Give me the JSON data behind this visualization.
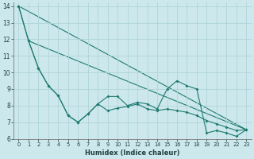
{
  "xlabel": "Humidex (Indice chaleur)",
  "background_color": "#cde8ec",
  "grid_color": "#aed4d8",
  "line_color": "#1e7a70",
  "xlim": [
    -0.5,
    23.5
  ],
  "ylim": [
    6,
    14.2
  ],
  "yticks": [
    6,
    7,
    8,
    9,
    10,
    11,
    12,
    13,
    14
  ],
  "xticks": [
    0,
    1,
    2,
    3,
    4,
    5,
    6,
    7,
    8,
    9,
    10,
    11,
    12,
    13,
    14,
    15,
    16,
    17,
    18,
    19,
    20,
    21,
    22,
    23
  ],
  "series": [
    {
      "x": [
        0,
        1,
        2,
        3,
        4,
        5,
        6,
        7,
        8,
        9,
        10,
        11,
        12,
        13,
        14,
        15,
        16,
        17,
        18,
        19,
        20,
        21,
        22,
        23
      ],
      "y": [
        14,
        11.9,
        10.25,
        9.2,
        8.6,
        7.4,
        7.0,
        7.5,
        8.1,
        8.55,
        8.55,
        8.0,
        8.2,
        8.1,
        7.8,
        9.0,
        9.5,
        9.2,
        9.0,
        6.35,
        6.5,
        6.35,
        6.15,
        6.55
      ],
      "marker": true
    },
    {
      "x": [
        0,
        1,
        2,
        3,
        4,
        5,
        6,
        7,
        8,
        9,
        10,
        11,
        12,
        13,
        14,
        15,
        16,
        17,
        18,
        19,
        20,
        21,
        22,
        23
      ],
      "y": [
        14,
        11.9,
        10.25,
        9.2,
        8.6,
        7.4,
        7.0,
        7.5,
        8.1,
        7.7,
        7.85,
        7.95,
        8.1,
        7.8,
        7.7,
        7.8,
        7.7,
        7.6,
        7.4,
        7.1,
        6.9,
        6.7,
        6.5,
        6.55
      ],
      "marker": true
    },
    {
      "x": [
        0,
        1,
        2,
        3,
        4,
        5,
        6,
        7,
        8,
        9,
        10,
        11,
        12,
        13,
        14,
        15,
        16,
        17,
        18,
        19,
        20,
        21,
        22,
        23
      ],
      "y": [
        14,
        11.9,
        10.25,
        9.2,
        8.6,
        7.4,
        7.0,
        7.5,
        8.1,
        7.7,
        7.85,
        7.95,
        8.1,
        7.8,
        7.7,
        7.8,
        7.7,
        7.6,
        7.4,
        7.1,
        6.9,
        6.7,
        6.5,
        6.55
      ],
      "marker": false
    },
    {
      "x": [
        2,
        3,
        4,
        5,
        6,
        7,
        8,
        9,
        10,
        11,
        12,
        13,
        14,
        15,
        16,
        17,
        18,
        19,
        20,
        21,
        22,
        23
      ],
      "y": [
        10.25,
        9.2,
        8.6,
        7.4,
        7.0,
        7.5,
        8.1,
        7.7,
        7.85,
        7.95,
        8.1,
        7.8,
        7.7,
        7.8,
        7.7,
        7.6,
        7.4,
        7.1,
        6.9,
        6.7,
        6.5,
        6.55
      ],
      "marker": false
    }
  ]
}
